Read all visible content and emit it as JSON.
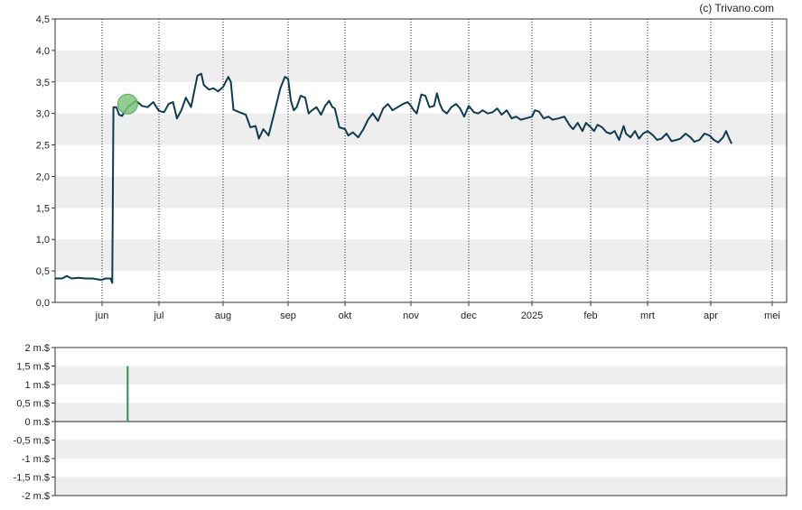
{
  "copyright": "(c) Trivano.com",
  "chart_data": [
    {
      "type": "line",
      "title": "",
      "xlabel": "",
      "ylabel": "",
      "ylim": [
        0,
        4.5
      ],
      "y_ticks": [
        "0,0",
        "0,5",
        "1,0",
        "1,5",
        "2,0",
        "2,5",
        "3,0",
        "3,5",
        "4,0",
        "4,5"
      ],
      "x_ticks": [
        "jun",
        "jul",
        "aug",
        "sep",
        "okt",
        "nov",
        "dec",
        "2025",
        "feb",
        "mrt",
        "apr",
        "mei"
      ],
      "grid": "alternating horizontal bands, dotted vertical month lines",
      "line_color": "#0f3b4f",
      "marker": {
        "month_index": 1.45,
        "value": 3.15,
        "color": "#7cc47c"
      },
      "series": [
        {
          "points": [
            [
              0.0,
              0.38
            ],
            [
              0.15,
              0.38
            ],
            [
              0.25,
              0.42
            ],
            [
              0.35,
              0.38
            ],
            [
              0.5,
              0.39
            ],
            [
              0.65,
              0.38
            ],
            [
              0.8,
              0.38
            ],
            [
              0.95,
              0.36
            ],
            [
              1.0,
              0.36
            ],
            [
              1.06,
              0.38
            ],
            [
              1.15,
              0.38
            ],
            [
              1.18,
              0.31
            ],
            [
              1.2,
              3.1
            ],
            [
              1.25,
              3.1
            ],
            [
              1.3,
              2.98
            ],
            [
              1.35,
              2.96
            ],
            [
              1.45,
              3.1
            ],
            [
              1.6,
              3.2
            ],
            [
              1.7,
              3.12
            ],
            [
              1.8,
              3.1
            ],
            [
              1.9,
              3.18
            ],
            [
              2.0,
              3.04
            ],
            [
              2.08,
              3.02
            ],
            [
              2.15,
              3.15
            ],
            [
              2.22,
              3.18
            ],
            [
              2.28,
              2.92
            ],
            [
              2.35,
              3.05
            ],
            [
              2.42,
              3.25
            ],
            [
              2.5,
              3.1
            ],
            [
              2.6,
              3.6
            ],
            [
              2.66,
              3.63
            ],
            [
              2.7,
              3.45
            ],
            [
              2.78,
              3.38
            ],
            [
              2.85,
              3.4
            ],
            [
              2.92,
              3.35
            ],
            [
              3.0,
              3.42
            ],
            [
              3.08,
              3.58
            ],
            [
              3.12,
              3.5
            ],
            [
              3.16,
              3.06
            ],
            [
              3.25,
              3.02
            ],
            [
              3.35,
              2.98
            ],
            [
              3.42,
              2.78
            ],
            [
              3.5,
              2.8
            ],
            [
              3.55,
              2.6
            ],
            [
              3.62,
              2.75
            ],
            [
              3.7,
              2.65
            ],
            [
              3.78,
              2.98
            ],
            [
              3.88,
              3.4
            ],
            [
              3.95,
              3.58
            ],
            [
              4.0,
              3.55
            ],
            [
              4.05,
              3.2
            ],
            [
              4.1,
              3.05
            ],
            [
              4.15,
              3.1
            ],
            [
              4.22,
              3.28
            ],
            [
              4.3,
              3.25
            ],
            [
              4.36,
              3.0
            ],
            [
              4.42,
              3.05
            ],
            [
              4.5,
              3.1
            ],
            [
              4.58,
              2.98
            ],
            [
              4.65,
              3.12
            ],
            [
              4.72,
              3.2
            ],
            [
              4.78,
              3.1
            ],
            [
              4.82,
              3.08
            ],
            [
              4.9,
              2.78
            ],
            [
              5.0,
              2.75
            ],
            [
              5.05,
              2.65
            ],
            [
              5.12,
              2.7
            ],
            [
              5.2,
              2.62
            ],
            [
              5.28,
              2.75
            ],
            [
              5.35,
              2.9
            ],
            [
              5.42,
              3.0
            ],
            [
              5.5,
              2.88
            ],
            [
              5.58,
              3.08
            ],
            [
              5.65,
              3.15
            ],
            [
              5.72,
              3.05
            ],
            [
              5.8,
              3.1
            ],
            [
              5.88,
              3.15
            ],
            [
              5.95,
              3.18
            ],
            [
              6.0,
              3.12
            ],
            [
              6.05,
              3.05
            ],
            [
              6.1,
              3.0
            ],
            [
              6.18,
              3.3
            ],
            [
              6.25,
              3.28
            ],
            [
              6.32,
              3.1
            ],
            [
              6.4,
              3.12
            ],
            [
              6.45,
              3.32
            ],
            [
              6.5,
              3.15
            ],
            [
              6.55,
              3.05
            ],
            [
              6.62,
              3.0
            ],
            [
              6.7,
              3.1
            ],
            [
              6.78,
              3.15
            ],
            [
              6.85,
              3.08
            ],
            [
              6.92,
              2.95
            ],
            [
              7.0,
              3.12
            ],
            [
              7.08,
              3.02
            ],
            [
              7.15,
              3.0
            ],
            [
              7.22,
              3.05
            ],
            [
              7.3,
              3.0
            ],
            [
              7.38,
              3.02
            ],
            [
              7.45,
              3.08
            ],
            [
              7.52,
              2.98
            ],
            [
              7.6,
              3.05
            ],
            [
              7.68,
              2.92
            ],
            [
              7.75,
              2.95
            ],
            [
              7.82,
              2.9
            ],
            [
              7.9,
              2.92
            ],
            [
              8.0,
              2.95
            ],
            [
              8.05,
              3.05
            ],
            [
              8.12,
              3.03
            ],
            [
              8.2,
              2.92
            ],
            [
              8.28,
              2.95
            ],
            [
              8.35,
              2.9
            ],
            [
              8.45,
              2.92
            ],
            [
              8.55,
              2.95
            ],
            [
              8.65,
              2.8
            ],
            [
              8.7,
              2.75
            ],
            [
              8.78,
              2.85
            ],
            [
              8.86,
              2.72
            ],
            [
              8.92,
              2.85
            ],
            [
              9.0,
              2.78
            ],
            [
              9.06,
              2.72
            ],
            [
              9.12,
              2.82
            ],
            [
              9.2,
              2.78
            ],
            [
              9.28,
              2.7
            ],
            [
              9.35,
              2.68
            ],
            [
              9.42,
              2.72
            ],
            [
              9.5,
              2.58
            ],
            [
              9.58,
              2.8
            ],
            [
              9.62,
              2.68
            ],
            [
              9.7,
              2.62
            ],
            [
              9.78,
              2.72
            ],
            [
              9.85,
              2.6
            ],
            [
              9.92,
              2.68
            ],
            [
              10.0,
              2.72
            ],
            [
              10.08,
              2.66
            ],
            [
              10.15,
              2.58
            ],
            [
              10.22,
              2.6
            ],
            [
              10.3,
              2.68
            ],
            [
              10.38,
              2.56
            ],
            [
              10.46,
              2.58
            ],
            [
              10.52,
              2.6
            ],
            [
              10.6,
              2.68
            ],
            [
              10.68,
              2.62
            ],
            [
              10.74,
              2.55
            ],
            [
              10.82,
              2.58
            ],
            [
              10.9,
              2.68
            ],
            [
              10.98,
              2.65
            ],
            [
              11.05,
              2.58
            ],
            [
              11.12,
              2.54
            ],
            [
              11.2,
              2.62
            ],
            [
              11.25,
              2.72
            ],
            [
              11.3,
              2.6
            ],
            [
              11.34,
              2.52
            ]
          ]
        }
      ]
    },
    {
      "type": "bar",
      "title": "",
      "xlabel": "",
      "ylabel": "",
      "ylim": [
        -2,
        2
      ],
      "y_ticks": [
        "2 m.$",
        "1,5 m.$",
        "1 m.$",
        "0,5 m.$",
        "0 m.$",
        "-0,5 m.$",
        "-1 m.$",
        "-1,5 m.$",
        "-2 m.$"
      ],
      "bar_color": "#2e8b57",
      "bars": [
        {
          "month_index": 1.45,
          "value": 1.5
        }
      ]
    }
  ]
}
